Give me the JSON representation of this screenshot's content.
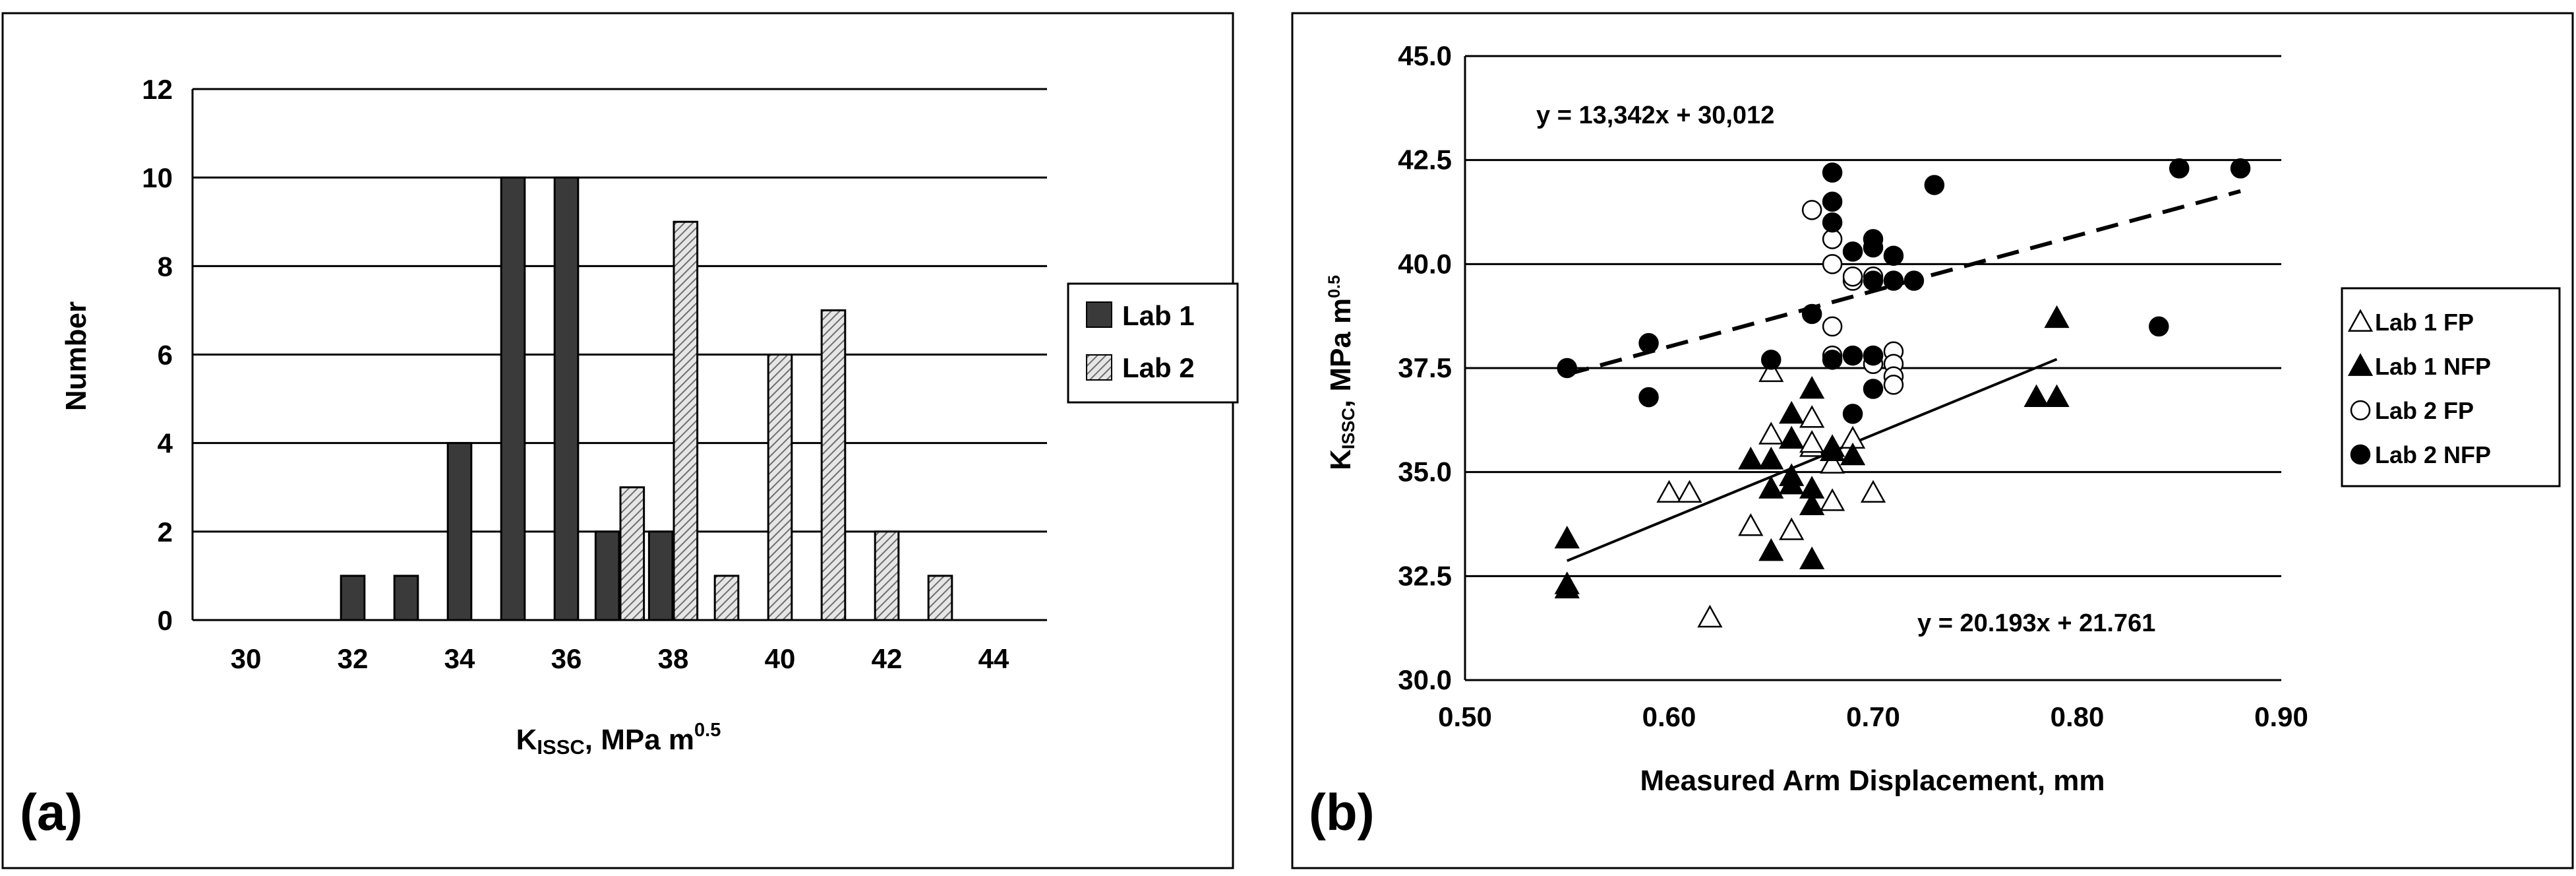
{
  "chart_data": [
    {
      "type": "bar",
      "panel_label": "(a)",
      "xlabel": "KISSC, MPa m0.5",
      "xlabel_parts": {
        "main": "K",
        "sub": "ISSC",
        "rest": ", MPa m",
        "sup": "0.5"
      },
      "ylabel": "Number",
      "ylim": [
        0,
        12
      ],
      "yticks": [
        0,
        2,
        4,
        6,
        8,
        10,
        12
      ],
      "xlim": [
        29,
        45
      ],
      "xtick_labels": [
        "30",
        "32",
        "34",
        "36",
        "38",
        "40",
        "42",
        "44"
      ],
      "xticks": [
        30,
        32,
        34,
        36,
        38,
        40,
        42,
        44
      ],
      "grid": true,
      "legend_position": "right",
      "series": [
        {
          "name": "Lab 1",
          "color": "#3a3a3a",
          "pattern": "solid",
          "x": [
            32,
            33,
            34,
            35,
            36,
            37,
            38
          ],
          "values": [
            1,
            1,
            4,
            10,
            10,
            2,
            2
          ]
        },
        {
          "name": "Lab 2",
          "color": "#c8c8c8",
          "pattern": "hatched",
          "x": [
            37,
            38,
            39,
            40,
            41,
            42,
            43
          ],
          "values": [
            3,
            9,
            1,
            6,
            7,
            2,
            1
          ]
        }
      ]
    },
    {
      "type": "scatter",
      "panel_label": "(b)",
      "xlabel": "Measured Arm Displacement, mm",
      "ylabel": "KISSC, MPa m0.5",
      "ylabel_parts": {
        "main": "K",
        "sub": "ISSC",
        "rest": ", MPa m",
        "sup": "0.5"
      },
      "xlim": [
        0.5,
        0.9
      ],
      "ylim": [
        30.0,
        45.0
      ],
      "xtick_labels": [
        "0.50",
        "0.60",
        "0.70",
        "0.80",
        "0.90"
      ],
      "xticks": [
        0.5,
        0.6,
        0.7,
        0.8,
        0.9
      ],
      "ytick_labels": [
        "30.0",
        "32.5",
        "35.0",
        "37.5",
        "40.0",
        "42.5",
        "45.0"
      ],
      "yticks": [
        30.0,
        32.5,
        35.0,
        37.5,
        40.0,
        42.5,
        45.0
      ],
      "grid": true,
      "legend_position": "right",
      "series": [
        {
          "name": "Lab 1 FP",
          "marker": "triangle-open",
          "x": [
            0.6,
            0.61,
            0.62,
            0.64,
            0.65,
            0.65,
            0.66,
            0.66,
            0.67,
            0.67,
            0.67,
            0.68,
            0.68,
            0.69,
            0.7
          ],
          "y": [
            34.5,
            34.5,
            31.5,
            33.7,
            35.9,
            37.4,
            33.6,
            35.8,
            35.6,
            35.7,
            36.3,
            34.3,
            35.2,
            35.8,
            34.5
          ]
        },
        {
          "name": "Lab 1 NFP",
          "marker": "triangle-filled",
          "x": [
            0.55,
            0.55,
            0.55,
            0.64,
            0.65,
            0.65,
            0.65,
            0.66,
            0.66,
            0.66,
            0.66,
            0.67,
            0.67,
            0.67,
            0.67,
            0.68,
            0.68,
            0.69,
            0.78,
            0.79,
            0.79
          ],
          "y": [
            33.4,
            32.3,
            32.2,
            35.3,
            35.3,
            34.6,
            33.1,
            35.8,
            36.4,
            34.9,
            34.7,
            37.0,
            34.6,
            34.2,
            32.9,
            35.6,
            35.5,
            35.4,
            36.8,
            36.8,
            38.7
          ]
        },
        {
          "name": "Lab 2 FP",
          "marker": "circle-open",
          "x": [
            0.67,
            0.68,
            0.68,
            0.68,
            0.68,
            0.69,
            0.69,
            0.7,
            0.7,
            0.7,
            0.71,
            0.71,
            0.71,
            0.71
          ],
          "y": [
            41.3,
            40.6,
            40.0,
            38.5,
            37.8,
            39.6,
            39.7,
            39.7,
            37.8,
            37.6,
            37.9,
            37.6,
            37.3,
            37.1
          ]
        },
        {
          "name": "Lab 2 NFP",
          "marker": "circle-filled",
          "x": [
            0.55,
            0.59,
            0.59,
            0.65,
            0.67,
            0.68,
            0.68,
            0.68,
            0.68,
            0.69,
            0.69,
            0.69,
            0.7,
            0.7,
            0.7,
            0.7,
            0.7,
            0.71,
            0.71,
            0.72,
            0.73,
            0.84,
            0.85,
            0.88
          ],
          "y": [
            37.5,
            38.1,
            36.8,
            37.7,
            38.8,
            42.2,
            41.5,
            41.0,
            37.7,
            40.3,
            37.8,
            36.4,
            40.6,
            40.4,
            39.6,
            37.8,
            37.0,
            40.2,
            39.6,
            39.6,
            41.9,
            38.5,
            42.3,
            42.3
          ]
        }
      ],
      "trendlines": [
        {
          "name": "dashed",
          "style": "dashed",
          "slope": 13.342,
          "intercept": 30.012,
          "x_range": [
            0.55,
            0.88
          ],
          "equation": "y = 13,342x + 30,012"
        },
        {
          "name": "solid",
          "style": "solid",
          "slope": 20.193,
          "intercept": 21.761,
          "x_range": [
            0.55,
            0.79
          ],
          "equation": "y = 20.193x + 21.761"
        }
      ]
    }
  ]
}
